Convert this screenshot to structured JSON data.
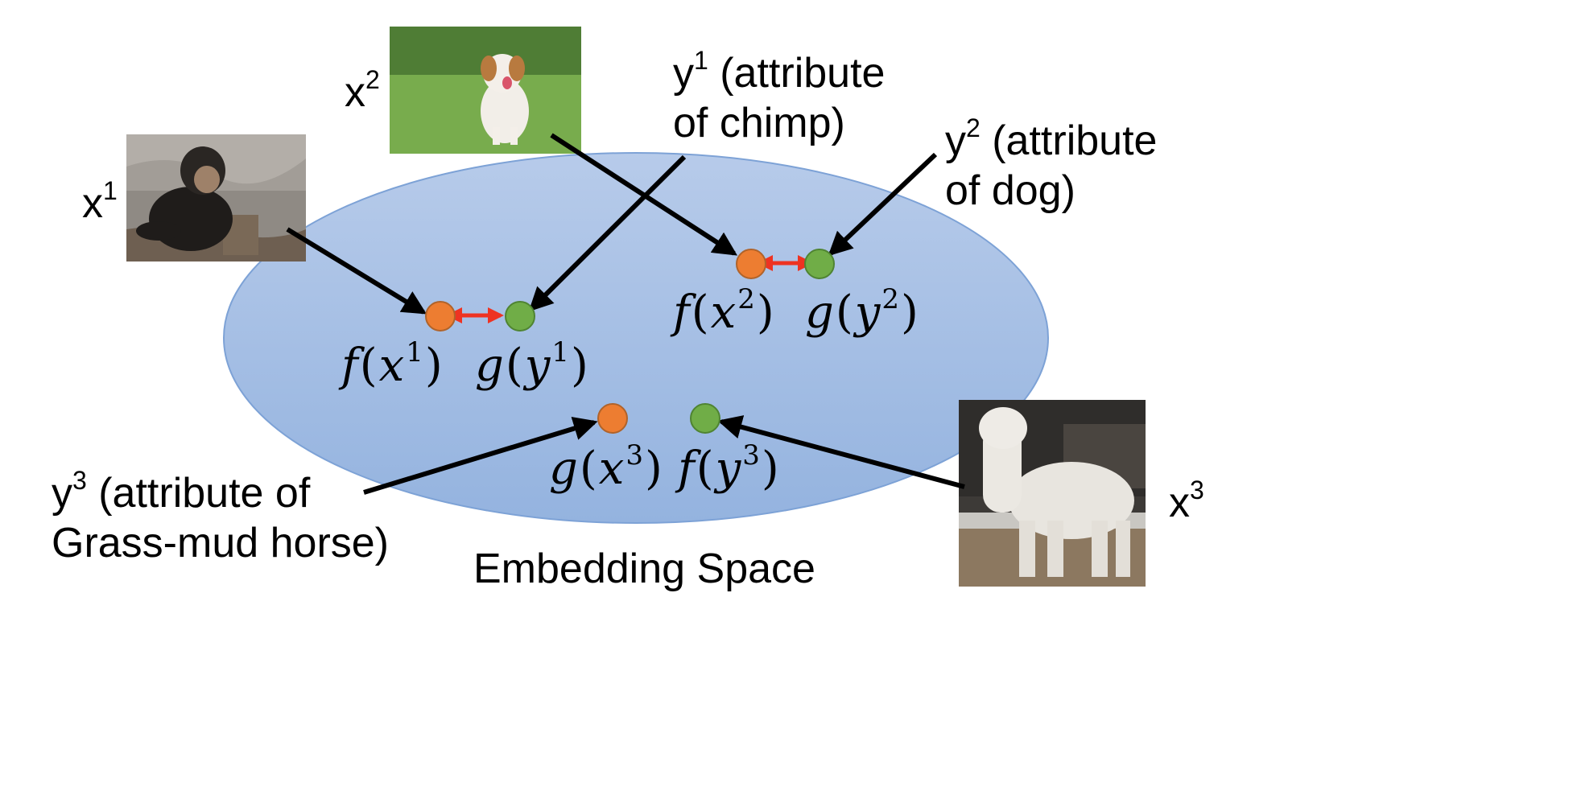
{
  "diagram": {
    "embedding_space_label": "Embedding Space",
    "inputs": [
      {
        "id": "x1",
        "label": "x",
        "sup": "1",
        "depicts": "chimp-photo"
      },
      {
        "id": "x2",
        "label": "x",
        "sup": "2",
        "depicts": "dog-photo"
      },
      {
        "id": "x3",
        "label": "x",
        "sup": "3",
        "depicts": "alpaca-photo"
      }
    ],
    "attributes": [
      {
        "id": "y1",
        "label": "y",
        "sup": "1",
        "text_line1": " (attribute",
        "text_line2": "of chimp)"
      },
      {
        "id": "y2",
        "label": "y",
        "sup": "2",
        "text_line1": " (attribute",
        "text_line2": "of dog)"
      },
      {
        "id": "y3",
        "label": "y",
        "sup": "3",
        "text_line1": " (attribute of",
        "text_line2": "Grass-mud horse)"
      }
    ],
    "points": [
      {
        "id": "fx1",
        "fn": "f",
        "arg": "x",
        "sup": "1",
        "color": "#ED7D31"
      },
      {
        "id": "gy1",
        "fn": "g",
        "arg": "y",
        "sup": "1",
        "color": "#70AD47"
      },
      {
        "id": "fx2",
        "fn": "f",
        "arg": "x",
        "sup": "2",
        "color": "#ED7D31"
      },
      {
        "id": "gy2",
        "fn": "g",
        "arg": "y",
        "sup": "2",
        "color": "#70AD47"
      },
      {
        "id": "gx3",
        "fn": "g",
        "arg": "x",
        "sup": "3",
        "color": "#ED7D31"
      },
      {
        "id": "fy3",
        "fn": "f",
        "arg": "y",
        "sup": "3",
        "color": "#70AD47"
      }
    ],
    "colors": {
      "ellipse_fill": "#a4bee3",
      "ellipse_stroke": "#7da2d6",
      "arrow": "#000000",
      "distance_arrow": "#ee3322"
    }
  }
}
